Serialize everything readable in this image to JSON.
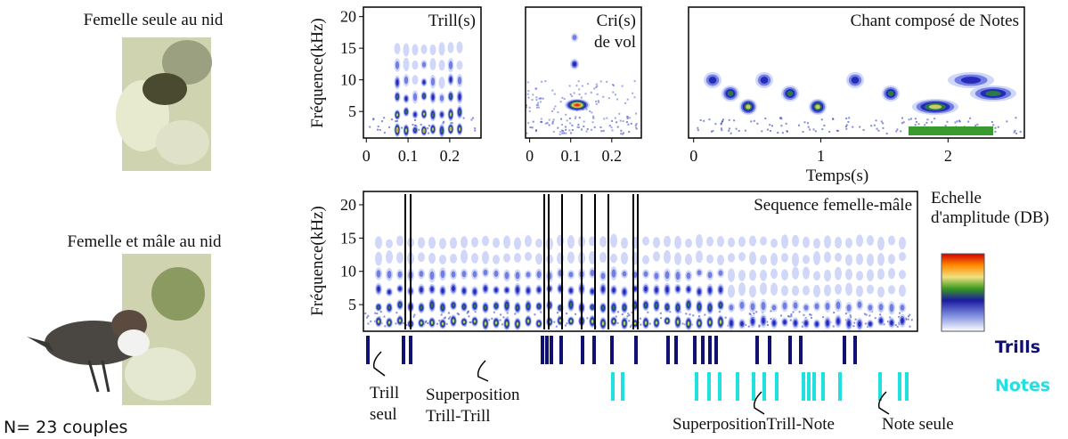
{
  "left": {
    "top_caption": "Femelle seule au nid",
    "bottom_caption": "Femelle et mâle au nid",
    "sample": "N= 23 couples"
  },
  "axes": {
    "ylabel": "Fréquence(kHz)",
    "xlabel": "Temps(s)"
  },
  "panels": [
    {
      "title": [
        "Trill(s)"
      ],
      "xlim": [
        -0.007,
        0.275
      ],
      "ylim": [
        0.8,
        21.5
      ],
      "xticks": [
        0,
        0.1,
        0.2
      ],
      "yticks": [
        5,
        10,
        15,
        20
      ]
    },
    {
      "title": [
        "Cri(s)",
        "de vol"
      ],
      "xlim": [
        -0.01,
        0.272
      ],
      "ylim": [
        0.8,
        21.5
      ],
      "xticks": [
        0,
        0.1,
        0.2
      ]
    },
    {
      "title": [
        "Chant composé de Notes"
      ],
      "xlim": [
        -0.04,
        2.6
      ],
      "ylim": [
        0.8,
        21.5
      ],
      "xticks": [
        0,
        1,
        2
      ]
    },
    {
      "title": [
        "Sequence femelle-mâle"
      ],
      "ylim": [
        1,
        22
      ],
      "yticks": [
        5,
        10,
        15,
        20
      ]
    }
  ],
  "scale": {
    "title": [
      "Echelle",
      "d'amplitude (DB)"
    ]
  },
  "rows": {
    "trills": "Trills",
    "notes": "Notes"
  },
  "annotations": [
    [
      "Trill",
      "seul"
    ],
    [
      "Superposition",
      "Trill-Trill"
    ],
    [
      "SuperpositionTrill-Note"
    ],
    [
      "Note seule"
    ]
  ]
}
